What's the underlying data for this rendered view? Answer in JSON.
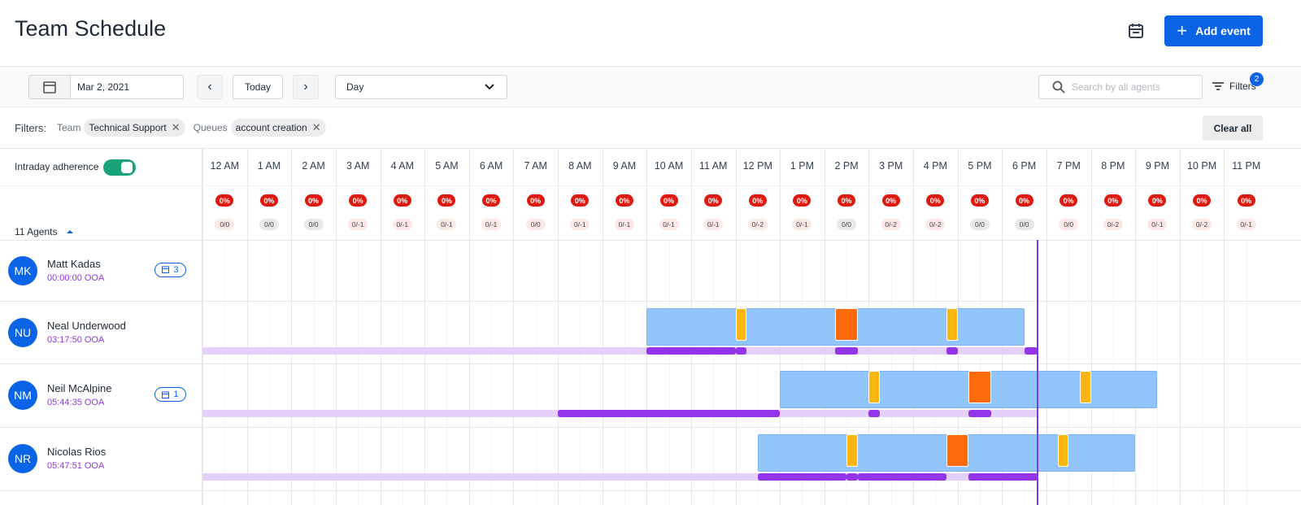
{
  "header": {
    "title": "Team Schedule",
    "add_event": "Add event"
  },
  "toolbar": {
    "date": "Mar 2, 2021",
    "today": "Today",
    "view": "Day",
    "search_placeholder": "Search by all agents",
    "filters": "Filters",
    "filters_count": "2"
  },
  "filter_bar": {
    "label": "Filters:",
    "groups": [
      {
        "label": "Team",
        "chip": "Technical Support"
      },
      {
        "label": "Queues",
        "chip": "account creation"
      }
    ],
    "clear": "Clear all"
  },
  "adherence_label": "Intraday adherence",
  "agents_count": "11 Agents",
  "timeline": {
    "xlim": [
      0,
      24
    ],
    "now": 18.8,
    "hours": [
      "12 AM",
      "1 AM",
      "2 AM",
      "3 AM",
      "4 AM",
      "5 AM",
      "6 AM",
      "7 AM",
      "8 AM",
      "9 AM",
      "10 AM",
      "11 AM",
      "12 PM",
      "1 PM",
      "2 PM",
      "3 PM",
      "4 PM",
      "5 PM",
      "6 PM",
      "7 PM",
      "8 PM",
      "9 PM",
      "10 PM",
      "11 PM"
    ],
    "percent": [
      "0%",
      "0%",
      "0%",
      "0%",
      "0%",
      "0%",
      "0%",
      "0%",
      "0%",
      "0%",
      "0%",
      "0%",
      "0%",
      "0%",
      "0%",
      "0%",
      "0%",
      "0%",
      "0%",
      "0%",
      "0%",
      "0%",
      "0%",
      "0%"
    ],
    "ratios": [
      {
        "text": "0/0",
        "color": "#fde8e8"
      },
      {
        "text": "0/0",
        "color": "#e8e8e8"
      },
      {
        "text": "0/0",
        "color": "#e8e8e8"
      },
      {
        "text": "0/-1",
        "color": "#fde8e8"
      },
      {
        "text": "0/-1",
        "color": "#fde8e8"
      },
      {
        "text": "0/-1",
        "color": "#fde8e8"
      },
      {
        "text": "0/-1",
        "color": "#fde8e8"
      },
      {
        "text": "0/0",
        "color": "#fde8e8"
      },
      {
        "text": "0/-1",
        "color": "#fde8e8"
      },
      {
        "text": "0/-1",
        "color": "#fde8e8"
      },
      {
        "text": "0/-1",
        "color": "#fde8e8"
      },
      {
        "text": "0/-1",
        "color": "#fde8e8"
      },
      {
        "text": "0/-2",
        "color": "#fde8e8"
      },
      {
        "text": "0/-1",
        "color": "#fde8e8"
      },
      {
        "text": "0/0",
        "color": "#e8e8e8"
      },
      {
        "text": "0/-2",
        "color": "#fde8e8"
      },
      {
        "text": "0/-2",
        "color": "#fde8e8"
      },
      {
        "text": "0/0",
        "color": "#e8e8e8"
      },
      {
        "text": "0/0",
        "color": "#e8e8e8"
      },
      {
        "text": "0/0",
        "color": "#fde8e8"
      },
      {
        "text": "0/-2",
        "color": "#fde8e8"
      },
      {
        "text": "0/-1",
        "color": "#fde8e8"
      },
      {
        "text": "0/-2",
        "color": "#fde8e8"
      },
      {
        "text": "0/-1",
        "color": "#fde8e8"
      }
    ]
  },
  "agents": [
    {
      "initials": "MK",
      "name": "Matt Kadas",
      "ooa": "00:00:00 OOA",
      "events": "3",
      "activities": [],
      "adherence": []
    },
    {
      "initials": "NU",
      "name": "Neal Underwood",
      "ooa": "03:17:50 OOA",
      "activities": [
        {
          "start": 10,
          "end": 18.5,
          "color": "#93c5fd"
        },
        {
          "start": 12,
          "end": 12.25,
          "color": "#fbb614"
        },
        {
          "start": 14.25,
          "end": 14.75,
          "color": "#ff6a0a"
        },
        {
          "start": 16.75,
          "end": 17,
          "color": "#fbb614"
        }
      ],
      "adherence": [
        {
          "start": 0,
          "end": 18.8,
          "color": "#e5d0fb"
        },
        {
          "start": 10,
          "end": 12,
          "color": "#9333ea"
        },
        {
          "start": 12,
          "end": 12.25,
          "color": "#9333ea"
        },
        {
          "start": 14.25,
          "end": 14.75,
          "color": "#9333ea"
        },
        {
          "start": 16.75,
          "end": 17,
          "color": "#9333ea"
        },
        {
          "start": 18.5,
          "end": 18.8,
          "color": "#9333ea"
        }
      ]
    },
    {
      "initials": "NM",
      "name": "Neil McAlpine",
      "ooa": "05:44:35 OOA",
      "events": "1",
      "activities": [
        {
          "start": 13,
          "end": 21.5,
          "color": "#93c5fd"
        },
        {
          "start": 15,
          "end": 15.25,
          "color": "#fbb614"
        },
        {
          "start": 17.25,
          "end": 17.75,
          "color": "#ff6a0a"
        },
        {
          "start": 19.75,
          "end": 20,
          "color": "#fbb614"
        }
      ],
      "adherence": [
        {
          "start": 0,
          "end": 18.8,
          "color": "#e5d0fb"
        },
        {
          "start": 8,
          "end": 13,
          "color": "#9333ea"
        },
        {
          "start": 15,
          "end": 15.25,
          "color": "#9333ea"
        },
        {
          "start": 17.25,
          "end": 17.75,
          "color": "#9333ea"
        }
      ]
    },
    {
      "initials": "NR",
      "name": "Nicolas Rios",
      "ooa": "05:47:51 OOA",
      "activities": [
        {
          "start": 12.5,
          "end": 21,
          "color": "#93c5fd"
        },
        {
          "start": 14.5,
          "end": 14.75,
          "color": "#fbb614"
        },
        {
          "start": 16.75,
          "end": 17.25,
          "color": "#ff6a0a"
        },
        {
          "start": 19.25,
          "end": 19.5,
          "color": "#fbb614"
        }
      ],
      "adherence": [
        {
          "start": 0,
          "end": 18.8,
          "color": "#e5d0fb"
        },
        {
          "start": 12.5,
          "end": 14.5,
          "color": "#9333ea"
        },
        {
          "start": 14.5,
          "end": 14.75,
          "color": "#9333ea"
        },
        {
          "start": 14.75,
          "end": 16.75,
          "color": "#9333ea"
        },
        {
          "start": 17.25,
          "end": 18.8,
          "color": "#9333ea"
        }
      ]
    }
  ]
}
